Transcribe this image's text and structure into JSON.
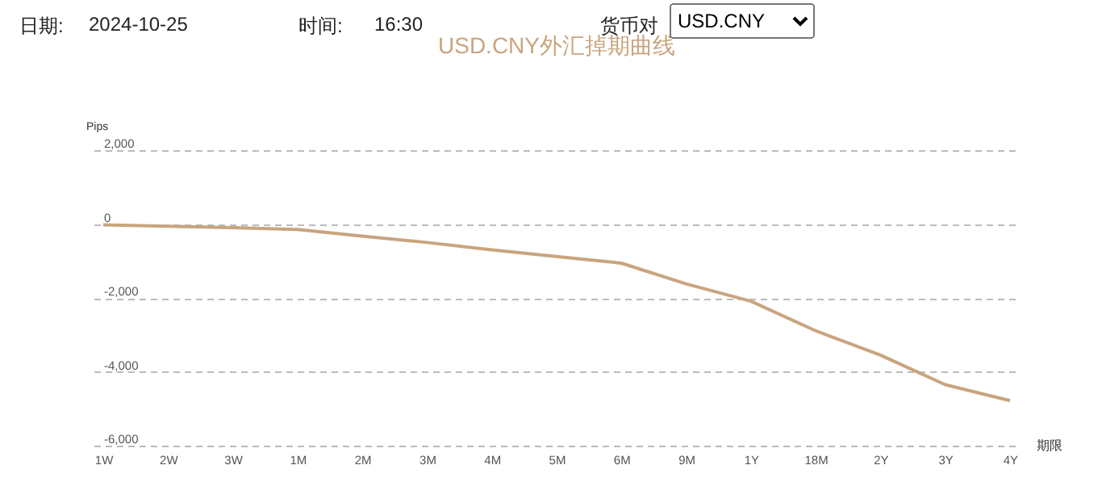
{
  "chart_data": {
    "type": "line",
    "title": "USD.CNY外汇掉期曲线",
    "xlabel": "期限",
    "ylabel": "Pips",
    "annotations": [
      "日期:",
      "2024-10-25",
      "时间:",
      "16:30",
      "货币对",
      "USD.CNY"
    ],
    "categories": [
      "1W",
      "2W",
      "3W",
      "1M",
      "2M",
      "3M",
      "4M",
      "5M",
      "6M",
      "9M",
      "1Y",
      "18M",
      "2Y",
      "3Y",
      "4Y"
    ],
    "ylim": [
      -6000,
      2000
    ],
    "yticks": [
      {
        "value": -6000,
        "label": "-6,000"
      },
      {
        "value": -4000,
        "label": "-4,000"
      },
      {
        "value": -2000,
        "label": "-2,000"
      },
      {
        "value": 0,
        "label": "0"
      },
      {
        "value": 2000,
        "label": "2,000"
      }
    ],
    "series": [
      {
        "color": "#c9a47e",
        "values": [
          -20,
          -60,
          -100,
          -150,
          -330,
          -500,
          -700,
          -880,
          -1060,
          -1620,
          -2090,
          -2890,
          -3550,
          -4350,
          -4780
        ]
      }
    ],
    "grid": "y",
    "marker": "none",
    "line_style": "solid"
  }
}
